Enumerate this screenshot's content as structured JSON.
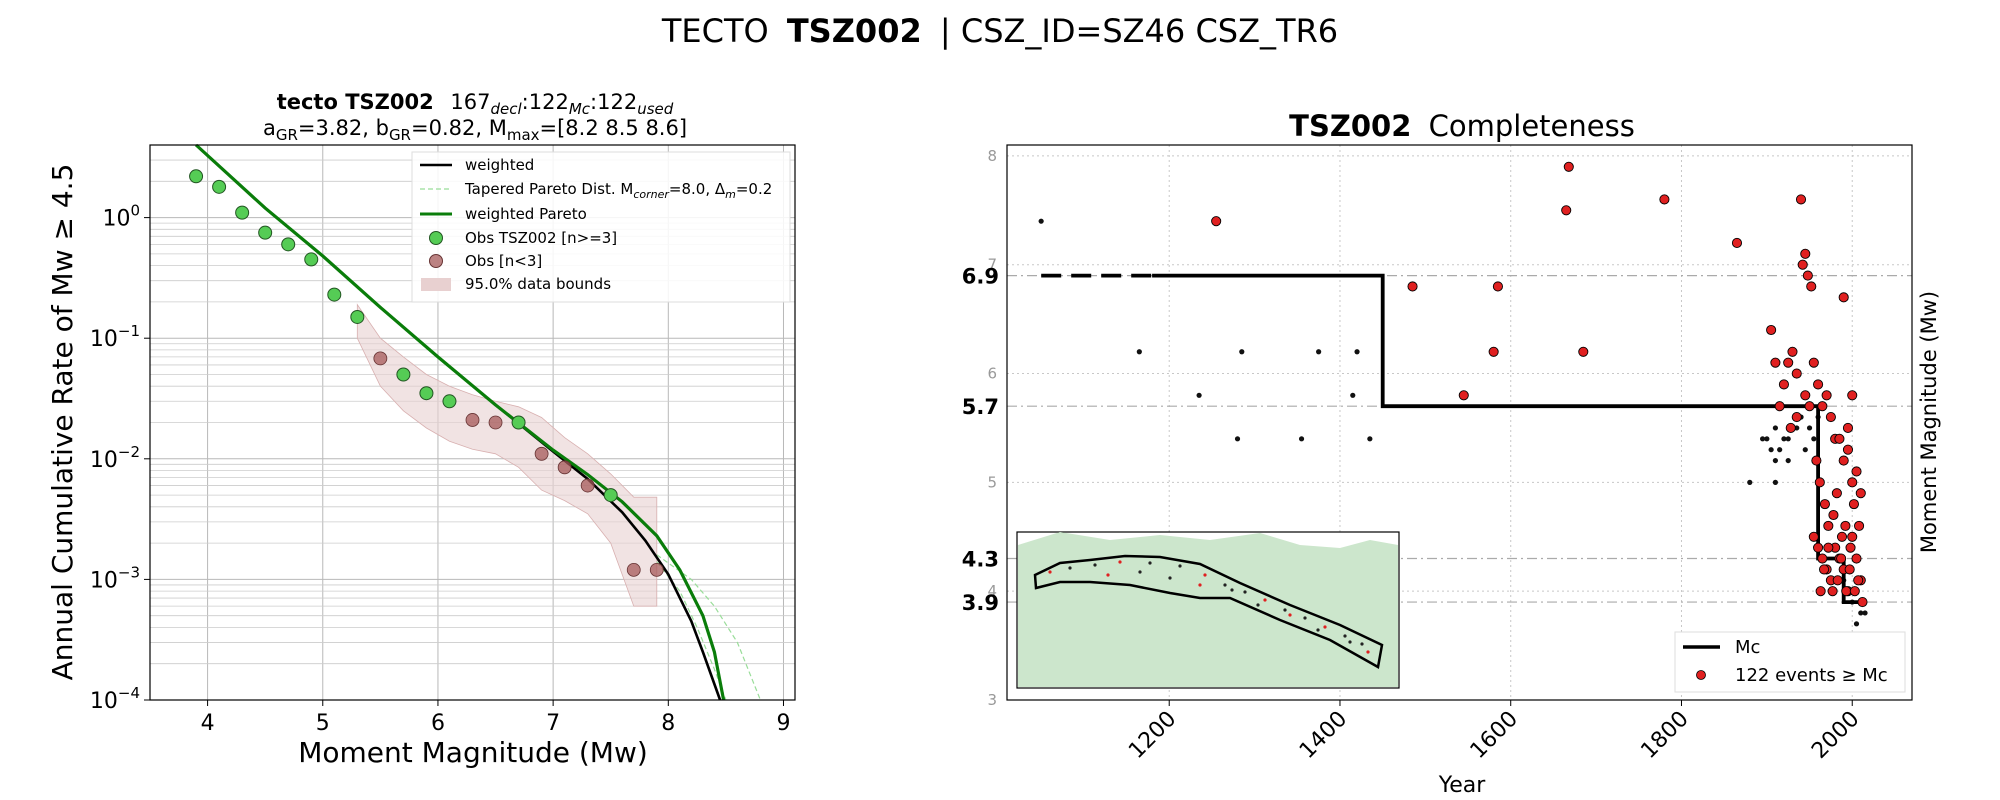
{
  "figure": {
    "title_prefix": "TECTO",
    "title_bold": "TSZ002",
    "title_suffix": "| CSZ_ID=SZ46 CSZ_TR6"
  },
  "chart_data": [
    {
      "type": "scatter",
      "title_line1_bold": "tecto TSZ002",
      "title_line1_counts": [
        {
          "value": "167",
          "sub": "decl"
        },
        {
          "value": "122",
          "sub": "Mc"
        },
        {
          "value": "122",
          "sub": "used"
        }
      ],
      "title_line2_parts": [
        {
          "text": "a",
          "sub": "GR",
          "after": "=3.82,  "
        },
        {
          "text": "b",
          "sub": "GR",
          "after": "=0.82, "
        },
        {
          "text": "M",
          "sub": "max",
          "after": "=[8.2 8.5 8.6]"
        }
      ],
      "xlabel": "Moment Magnitude (Mw)",
      "ylabel": "Annual Cumulative Rate of Mw  ≥  4.5",
      "xlim": [
        3.5,
        9.1
      ],
      "ylim": [
        0.0001,
        4
      ],
      "yscale": "log",
      "grid": true,
      "legend_placement": "top-right",
      "x_ticks": [
        "4",
        "5",
        "6",
        "7",
        "8",
        "9"
      ],
      "y_ticks": [
        {
          "base": "10",
          "exp": "0",
          "value": 1
        },
        {
          "base": "10",
          "exp": "−1",
          "value": 0.1
        },
        {
          "base": "10",
          "exp": "−2",
          "value": 0.01
        },
        {
          "base": "10",
          "exp": "−3",
          "value": 0.001
        },
        {
          "base": "10",
          "exp": "−4",
          "value": 0.0001
        }
      ],
      "legend": [
        {
          "key": "weighted",
          "label": "weighted"
        },
        {
          "key": "tapered",
          "label": "Tapered Pareto Dist. M",
          "sub": "corner",
          "after": "=8.0, Δ",
          "sub2": "m",
          "after2": "=0.2"
        },
        {
          "key": "pareto",
          "label": "weighted Pareto"
        },
        {
          "key": "obs",
          "label": "Obs TSZ002 [n>=3]"
        },
        {
          "key": "obs_small",
          "label": "Obs [n<3]"
        },
        {
          "key": "bounds",
          "label": "95.0% data bounds"
        }
      ],
      "series": [
        {
          "key": "obs",
          "x": [
            3.9,
            4.1,
            4.3,
            4.5,
            4.7,
            4.9,
            5.1,
            5.3,
            5.7,
            5.9,
            6.1,
            6.7,
            7.5
          ],
          "y": [
            2.2,
            1.8,
            1.1,
            0.75,
            0.6,
            0.45,
            0.23,
            0.15,
            0.05,
            0.035,
            0.03,
            0.02,
            0.005
          ]
        },
        {
          "key": "obs_small",
          "x": [
            5.5,
            6.3,
            6.5,
            6.9,
            7.1,
            7.3,
            7.7,
            7.9
          ],
          "y": [
            0.068,
            0.021,
            0.02,
            0.011,
            0.0085,
            0.006,
            0.0012,
            0.0012
          ]
        },
        {
          "key": "weighted",
          "x": [
            3.9,
            4.5,
            5.0,
            5.5,
            6.0,
            6.5,
            7.0,
            7.3,
            7.6,
            7.8,
            8.0,
            8.2,
            8.3,
            8.45
          ],
          "y": [
            4.0,
            1.2,
            0.48,
            0.18,
            0.07,
            0.028,
            0.0115,
            0.0068,
            0.0036,
            0.0021,
            0.0011,
            0.00045,
            0.00025,
            0.0001
          ]
        },
        {
          "key": "pareto",
          "x": [
            3.9,
            4.5,
            5.0,
            5.5,
            6.0,
            6.5,
            7.0,
            7.3,
            7.6,
            7.9,
            8.1,
            8.3,
            8.4,
            8.48
          ],
          "y": [
            4.0,
            1.2,
            0.48,
            0.18,
            0.07,
            0.028,
            0.0118,
            0.0074,
            0.0044,
            0.0023,
            0.0012,
            0.0005,
            0.00025,
            0.0001
          ]
        },
        {
          "key": "tapered_lo",
          "x": [
            7.9,
            8.1,
            8.25,
            8.4,
            8.5
          ],
          "y": [
            0.0014,
            0.0008,
            0.0004,
            0.00018,
            0.0001
          ]
        },
        {
          "key": "tapered_hi",
          "x": [
            7.9,
            8.2,
            8.4,
            8.6,
            8.8
          ],
          "y": [
            0.0016,
            0.001,
            0.0006,
            0.0003,
            0.0001
          ]
        },
        {
          "key": "bounds_upper",
          "x": [
            5.3,
            5.5,
            5.7,
            5.9,
            6.1,
            6.3,
            6.5,
            6.7,
            6.9,
            7.1,
            7.3,
            7.5,
            7.7,
            7.9
          ],
          "y": [
            0.19,
            0.1,
            0.07,
            0.05,
            0.04,
            0.034,
            0.03,
            0.027,
            0.022,
            0.015,
            0.011,
            0.0075,
            0.0048,
            0.0048
          ]
        },
        {
          "key": "bounds_lower",
          "x": [
            5.3,
            5.5,
            5.7,
            5.9,
            6.1,
            6.3,
            6.5,
            6.7,
            6.9,
            7.1,
            7.3,
            7.5,
            7.7,
            7.9
          ],
          "y": [
            0.1,
            0.04,
            0.025,
            0.018,
            0.014,
            0.012,
            0.011,
            0.0085,
            0.0055,
            0.0045,
            0.0035,
            0.002,
            0.0006,
            0.0006
          ]
        }
      ]
    },
    {
      "type": "scatter",
      "title_bold": "TSZ002",
      "title_rest": "Completeness",
      "xlabel": "Year",
      "ylabel": "Moment Magnitude (Mw)",
      "xlim": [
        1010,
        2070
      ],
      "ylim": [
        3,
        8.1
      ],
      "grid": true,
      "legend_placement": "bottom-right",
      "x_ticks": [
        "1200",
        "1400",
        "1600",
        "1800",
        "2000"
      ],
      "y_ticks_small": [
        "3",
        "4",
        "5",
        "6",
        "7",
        "8"
      ],
      "mc_levels": [
        {
          "label": "6.9",
          "value": 6.9
        },
        {
          "label": "5.7",
          "value": 5.7
        },
        {
          "label": "4.3",
          "value": 4.3
        },
        {
          "label": "3.9",
          "value": 3.9
        }
      ],
      "legend": [
        {
          "key": "mc",
          "label": "Mc"
        },
        {
          "key": "events",
          "label": "122 events  ≥  Mc"
        }
      ],
      "mc_step": {
        "x": [
          1180,
          1450,
          1450,
          1960,
          1960,
          1990,
          1990,
          2010
        ],
        "y": [
          6.9,
          6.9,
          5.7,
          5.7,
          4.3,
          4.3,
          3.9,
          3.9
        ],
        "dashed": {
          "x": [
            1050,
            1180
          ],
          "y": [
            6.9,
            6.9
          ]
        }
      },
      "events_small": {
        "x": [
          1050,
          1165,
          1235,
          1285,
          1280,
          1355,
          1375,
          1415,
          1420,
          1435,
          1900,
          1910,
          1920,
          1930,
          1940,
          1950,
          1905,
          1915,
          1925,
          1935,
          1945,
          1955,
          1895,
          1910,
          1925,
          1940,
          1960,
          1880,
          1910,
          1990,
          2000,
          2010,
          2015,
          2005,
          2000
        ],
        "y": [
          7.4,
          6.2,
          5.8,
          6.2,
          5.4,
          5.4,
          6.2,
          5.8,
          6.2,
          5.4,
          5.4,
          5.5,
          5.4,
          5.5,
          5.6,
          5.5,
          5.3,
          5.3,
          5.4,
          5.5,
          5.3,
          5.4,
          5.4,
          5.2,
          5.2,
          5.6,
          5.6,
          5.0,
          5.0,
          4.1,
          3.9,
          3.8,
          3.8,
          3.7,
          3.6
        ]
      },
      "events": {
        "x": [
          1255,
          1485,
          1545,
          1580,
          1585,
          1665,
          1668,
          1685,
          1780,
          1865,
          1905,
          1910,
          1920,
          1925,
          1930,
          1935,
          1940,
          1945,
          1942,
          1948,
          1952,
          1955,
          1960,
          1965,
          1970,
          1975,
          1980,
          1985,
          1990,
          1995,
          2000,
          2005,
          2010,
          1958,
          1962,
          1968,
          1972,
          1978,
          1982,
          1988,
          1992,
          1998,
          2002,
          2008,
          1955,
          1960,
          1965,
          1970,
          1975,
          1980,
          1985,
          1990,
          1995,
          2000,
          2005,
          2010,
          1963,
          1967,
          1972,
          1977,
          1983,
          1987,
          1993,
          1997,
          2003,
          2007,
          2012,
          1945,
          1950,
          1935,
          1928,
          1915,
          1990,
          2000,
          1995
        ],
        "y": [
          7.4,
          6.8,
          5.8,
          6.2,
          6.8,
          7.5,
          7.9,
          6.2,
          7.6,
          7.2,
          6.4,
          6.1,
          5.9,
          6.1,
          6.2,
          6.0,
          7.6,
          7.1,
          7.0,
          6.9,
          6.8,
          6.1,
          5.9,
          5.7,
          5.8,
          5.6,
          5.4,
          5.4,
          5.2,
          5.3,
          5.0,
          5.1,
          4.9,
          5.2,
          5.0,
          4.8,
          4.6,
          4.7,
          4.9,
          4.5,
          4.6,
          4.4,
          4.8,
          4.6,
          4.5,
          4.4,
          4.3,
          4.2,
          4.1,
          4.4,
          4.3,
          4.2,
          4.0,
          4.5,
          4.3,
          4.1,
          4.0,
          4.2,
          4.4,
          4.0,
          4.1,
          4.3,
          4.0,
          4.2,
          4.0,
          4.1,
          3.9,
          5.8,
          5.7,
          5.6,
          5.5,
          5.7,
          6.7,
          5.8,
          5.5
        ]
      },
      "inset": {
        "description_colors": {
          "land": "#cce6cc",
          "zone": "#000000"
        }
      }
    }
  ],
  "colors": {
    "obs": "#55cc55",
    "obs_small": "#a65a5a",
    "bounds": "#e8d0d0",
    "pareto": "#0a7d0a",
    "tapered": "#99dd99",
    "event_red": "#e02020",
    "inset_land": "#cce6cc"
  }
}
